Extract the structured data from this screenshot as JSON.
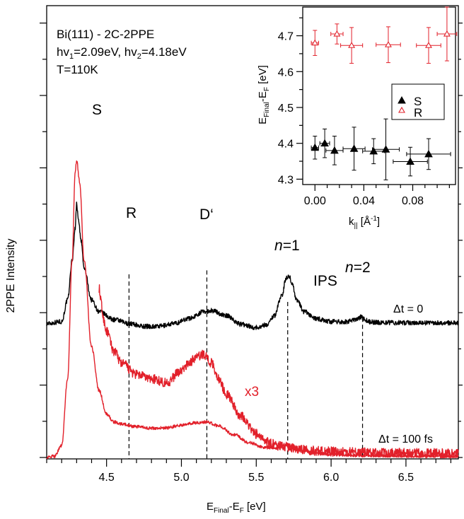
{
  "colors": {
    "black": "#000000",
    "red": "#e2202a"
  },
  "chart_data": [
    {
      "type": "line",
      "xlabel": {
        "main": "E",
        "sub1": "Final",
        "mid": "-E",
        "sub2": "F",
        "unit": " [eV]"
      },
      "ylabel": "2PPE Intensity",
      "xlim": [
        4.1,
        6.85
      ],
      "ylim": [
        0,
        1
      ],
      "x_ticks": [
        "4.5",
        "5.0",
        "5.5",
        "6.0",
        "6.5"
      ],
      "info_lines": [
        {
          "text": "Bi(111) - 2C-2PPE"
        },
        {
          "parts": [
            [
              "hv",
              ""
            ],
            [
              "1",
              "sub"
            ],
            [
              "=2.09eV, hv",
              ""
            ],
            [
              "2",
              "sub"
            ],
            [
              "=4.18eV",
              ""
            ]
          ]
        },
        {
          "text": "T=110K"
        }
      ],
      "peak_labels": [
        {
          "id": "S",
          "text": "S",
          "x": 4.33
        },
        {
          "id": "R",
          "text": "R",
          "x": 4.65
        },
        {
          "id": "D",
          "text": "D‘",
          "x": 5.17
        },
        {
          "id": "n1",
          "text": "=1",
          "italic": "n",
          "x": 5.71
        },
        {
          "id": "IPS",
          "text": "IPS",
          "x": 5.95
        },
        {
          "id": "n2",
          "text": "=2",
          "italic": "n",
          "x": 6.21
        }
      ],
      "markers": [
        {
          "x": 4.65,
          "y_top": 0.465
        },
        {
          "x": 5.17,
          "y_top": 0.475
        },
        {
          "x": 5.71,
          "y_top": 0.395
        },
        {
          "x": 6.21,
          "y_top": 0.355
        }
      ],
      "series": [
        {
          "id": "dt0",
          "label": "Δt = 0",
          "color": "#000000",
          "noise": 0.006,
          "x": [
            4.1,
            4.2,
            4.24,
            4.27,
            4.29,
            4.3,
            4.31,
            4.33,
            4.35,
            4.4,
            4.45,
            4.55,
            4.65,
            4.75,
            4.85,
            4.95,
            5.05,
            5.15,
            5.2,
            5.3,
            5.4,
            5.5,
            5.57,
            5.62,
            5.67,
            5.7,
            5.72,
            5.74,
            5.77,
            5.82,
            5.9,
            6.0,
            6.1,
            6.17,
            6.2,
            6.22,
            6.25,
            6.3,
            6.4,
            6.6,
            6.85
          ],
          "y": [
            0.34,
            0.345,
            0.4,
            0.5,
            0.58,
            0.645,
            0.61,
            0.55,
            0.48,
            0.4,
            0.37,
            0.35,
            0.34,
            0.333,
            0.333,
            0.34,
            0.353,
            0.37,
            0.373,
            0.36,
            0.338,
            0.33,
            0.337,
            0.36,
            0.41,
            0.455,
            0.461,
            0.44,
            0.4,
            0.37,
            0.352,
            0.345,
            0.344,
            0.35,
            0.357,
            0.352,
            0.345,
            0.343,
            0.342,
            0.342,
            0.342
          ]
        },
        {
          "id": "x3",
          "label": "x3",
          "color": "#e2202a",
          "noise": 0.012,
          "x": [
            4.45,
            4.46,
            4.48,
            4.5,
            4.55,
            4.6,
            4.7,
            4.8,
            4.9,
            5.0,
            5.05,
            5.1,
            5.15,
            5.2,
            5.25,
            5.3,
            5.4,
            5.5,
            5.55,
            5.6,
            5.65,
            5.7,
            5.72,
            5.75,
            5.8,
            5.9,
            6.0,
            6.2,
            6.4,
            6.6,
            6.85
          ],
          "y": [
            0.43,
            0.4,
            0.35,
            0.32,
            0.27,
            0.24,
            0.21,
            0.2,
            0.19,
            0.22,
            0.24,
            0.255,
            0.262,
            0.24,
            0.2,
            0.16,
            0.105,
            0.06,
            0.045,
            0.035,
            0.03,
            0.028,
            0.026,
            0.024,
            0.021,
            0.017,
            0.015,
            0.013,
            0.012,
            0.011,
            0.01
          ]
        },
        {
          "id": "dt100",
          "label": "Δt = 100 fs",
          "color": "#e2202a",
          "noise": 0.004,
          "x": [
            4.1,
            4.15,
            4.2,
            4.24,
            4.27,
            4.29,
            4.3,
            4.32,
            4.35,
            4.4,
            4.45,
            4.5,
            4.55,
            4.6,
            4.7,
            4.8,
            4.9,
            5.0,
            5.1,
            5.17,
            5.25,
            5.35,
            5.45,
            5.55,
            5.62,
            5.68,
            5.71,
            5.74,
            5.8,
            5.9,
            6.0,
            6.2,
            6.5,
            6.85
          ],
          "y": [
            0.0,
            0.003,
            0.03,
            0.2,
            0.5,
            0.72,
            0.755,
            0.7,
            0.5,
            0.28,
            0.17,
            0.11,
            0.09,
            0.085,
            0.078,
            0.074,
            0.075,
            0.082,
            0.088,
            0.09,
            0.08,
            0.058,
            0.038,
            0.026,
            0.024,
            0.03,
            0.033,
            0.028,
            0.018,
            0.011,
            0.008,
            0.005,
            0.004,
            0.003
          ]
        }
      ]
    },
    {
      "type": "scatter",
      "xlabel": {
        "main": "k",
        "sub": "||",
        "unit": " [Å",
        "sup": "-1",
        "close": "]"
      },
      "ylabel": {
        "main": "E",
        "sub1": "Final",
        "mid": "-E",
        "sub2": "F",
        "unit": " [eV]"
      },
      "xlim": [
        -0.01,
        0.115
      ],
      "ylim": [
        4.285,
        4.78
      ],
      "x_ticks": [
        "0.00",
        "0.04",
        "0.08"
      ],
      "y_ticks": [
        "4.3",
        "4.4",
        "4.5",
        "4.6",
        "4.7"
      ],
      "legend": {
        "placement": "right"
      },
      "series": [
        {
          "name": "S",
          "marker": "filled-triangle",
          "color": "#000000",
          "points": [
            {
              "x": 0.0,
              "y": 4.388,
              "xerr": 0.003,
              "yerr": 0.032
            },
            {
              "x": 0.008,
              "y": 4.4,
              "xerr": 0.004,
              "yerr": 0.04
            },
            {
              "x": 0.016,
              "y": 4.38,
              "xerr": 0.007,
              "yerr": 0.04
            },
            {
              "x": 0.032,
              "y": 4.385,
              "xerr": 0.009,
              "yerr": 0.06
            },
            {
              "x": 0.048,
              "y": 4.378,
              "xerr": 0.009,
              "yerr": 0.035
            },
            {
              "x": 0.058,
              "y": 4.383,
              "xerr": 0.011,
              "yerr": 0.085
            },
            {
              "x": 0.078,
              "y": 4.349,
              "xerr": 0.014,
              "yerr": 0.04
            },
            {
              "x": 0.093,
              "y": 4.37,
              "xerr": 0.018,
              "yerr": 0.043
            }
          ]
        },
        {
          "name": "R",
          "marker": "open-triangle",
          "color": "#e2202a",
          "points": [
            {
              "x": 0.0,
              "y": 4.68,
              "xerr": 0.003,
              "yerr": 0.035
            },
            {
              "x": 0.018,
              "y": 4.705,
              "xerr": 0.005,
              "yerr": 0.028
            },
            {
              "x": 0.03,
              "y": 4.673,
              "xerr": 0.009,
              "yerr": 0.05
            },
            {
              "x": 0.06,
              "y": 4.675,
              "xerr": 0.01,
              "yerr": 0.05
            },
            {
              "x": 0.093,
              "y": 4.673,
              "xerr": 0.01,
              "yerr": 0.05
            },
            {
              "x": 0.108,
              "y": 4.705,
              "xerr": 0.008,
              "yerr": 0.075
            }
          ]
        }
      ]
    }
  ]
}
